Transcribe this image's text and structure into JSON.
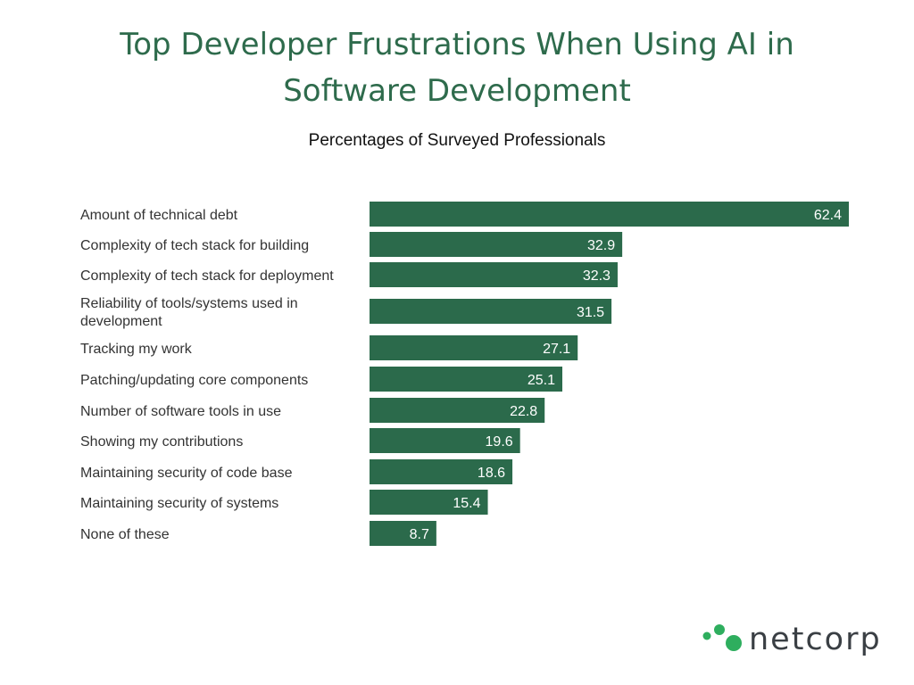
{
  "title": "Top Developer Frustrations When Using AI in Software Development",
  "subtitle": "Percentages of Surveyed Professionals",
  "brand": {
    "name": "netcorp",
    "mark_color": "#2eae5e",
    "text_color": "#3a3f44"
  },
  "colors": {
    "bar": "#2b6a4b",
    "title": "#2e6b4c"
  },
  "chart_data": {
    "type": "bar",
    "orientation": "horizontal",
    "categories": [
      [
        "Amount of technical debt"
      ],
      [
        "Complexity of tech stack for building"
      ],
      [
        "Complexity of tech stack for deployment"
      ],
      [
        "Reliability of tools/systems used in",
        "development"
      ],
      [
        "Tracking my work"
      ],
      [
        "Patching/updating core components"
      ],
      [
        "Number of software tools in use"
      ],
      [
        "Showing my contributions"
      ],
      [
        "Maintaining security of code base"
      ],
      [
        "Maintaining security of systems"
      ],
      [
        "None of these"
      ]
    ],
    "values": [
      62.4,
      32.9,
      32.3,
      31.5,
      27.1,
      25.1,
      22.8,
      19.6,
      18.6,
      15.4,
      8.7
    ],
    "xlim": [
      0,
      62.4
    ],
    "data_labels": true,
    "grid": false,
    "legend": "none"
  }
}
